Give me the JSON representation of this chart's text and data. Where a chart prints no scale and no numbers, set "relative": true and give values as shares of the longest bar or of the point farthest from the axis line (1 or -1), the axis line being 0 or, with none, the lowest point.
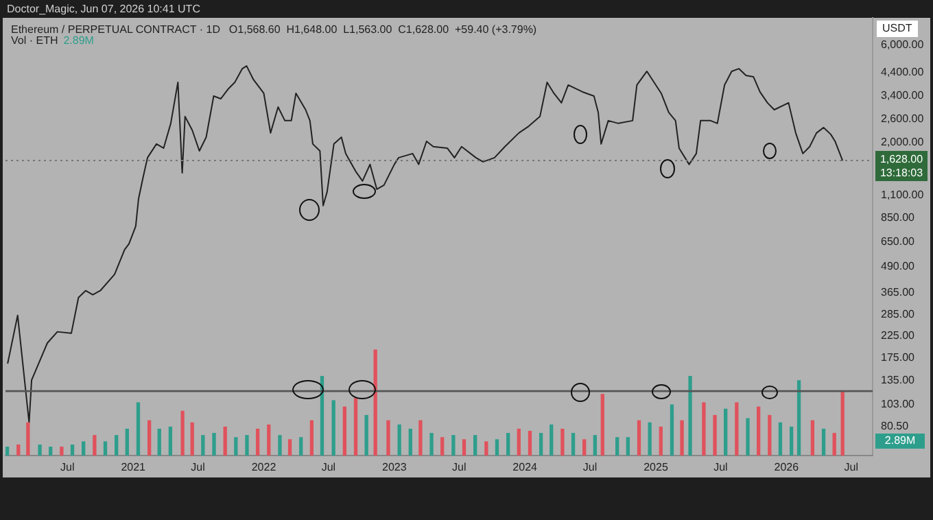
{
  "chart_data": [
    {
      "type": "line",
      "title": "Ethereum / PERPETUAL CONTRACT · 1D",
      "subtitle": "O1,568.60  H1,648.00  L1,563.00  C1,628.00  +59.40 (+3.79%)",
      "annotations": [
        "Doctor_Magic, Jun 07, 2026 10:41 UTC",
        "Vol · ETH",
        "2.89M",
        "USDT",
        "13:18:03",
        "2.89M"
      ],
      "log": "y",
      "tick_labels": "y",
      "xlim": [
        "2020-01-10",
        "2026-08-30"
      ],
      "ylim": [
        58,
        8180
      ],
      "yticks": [
        {
          "value": 6000,
          "label": "6,000.00"
        },
        {
          "value": 4400,
          "label": "4,400.00"
        },
        {
          "value": 3400,
          "label": "3,400.00"
        },
        {
          "value": 2600,
          "label": "2,600.00"
        },
        {
          "value": 2000,
          "label": "2,000.00"
        },
        {
          "value": 1100,
          "label": "1,100.00"
        },
        {
          "value": 850,
          "label": "850.00"
        },
        {
          "value": 650,
          "label": "650.00"
        },
        {
          "value": 490,
          "label": "490.00"
        },
        {
          "value": 365,
          "label": "365.00"
        },
        {
          "value": 285,
          "label": "285.00"
        },
        {
          "value": 225,
          "label": "225.00"
        },
        {
          "value": 175,
          "label": "175.00"
        },
        {
          "value": 135,
          "label": "135.00"
        },
        {
          "value": 103,
          "label": "103.00"
        },
        {
          "value": 80.5,
          "label": "80.50"
        }
      ],
      "ref_lines": [
        {
          "axis": "y",
          "value": 1628,
          "label": "1,628.00",
          "color": "#777777",
          "line_style": "dotted"
        }
      ],
      "series": [
        {
          "color": "#222222",
          "x": [
            "2020-01-16",
            "2020-02-13",
            "2020-03-16",
            "2020-03-23",
            "2020-05-06",
            "2020-06-03",
            "2020-07-12",
            "2020-08-01",
            "2020-08-21",
            "2020-09-10",
            "2020-10-01",
            "2020-11-10",
            "2020-12-08",
            "2020-12-20",
            "2021-01-08",
            "2021-01-16",
            "2021-01-28",
            "2021-02-10",
            "2021-03-07",
            "2021-03-27",
            "2021-04-16",
            "2021-05-06",
            "2021-05-18",
            "2021-05-26",
            "2021-06-15",
            "2021-07-05",
            "2021-07-24",
            "2021-08-14",
            "2021-09-03",
            "2021-09-23",
            "2021-10-12",
            "2021-11-02",
            "2021-11-14",
            "2021-12-03",
            "2022-01-01",
            "2022-01-20",
            "2022-02-10",
            "2022-03-01",
            "2022-03-19",
            "2022-04-01",
            "2022-04-28",
            "2022-05-10",
            "2022-05-18",
            "2022-06-07",
            "2022-06-16",
            "2022-06-27",
            "2022-07-16",
            "2022-08-06",
            "2022-08-18",
            "2022-09-15",
            "2022-10-04",
            "2022-10-25",
            "2022-11-13",
            "2022-12-03",
            "2023-01-01",
            "2023-01-13",
            "2023-02-21",
            "2023-03-10",
            "2023-04-01",
            "2023-04-20",
            "2023-05-29",
            "2023-06-18",
            "2023-07-08",
            "2023-08-17",
            "2023-09-06",
            "2023-10-08",
            "2023-11-06",
            "2023-12-15",
            "2024-01-12",
            "2024-02-12",
            "2024-03-03",
            "2024-03-22",
            "2024-04-12",
            "2024-05-01",
            "2024-06-10",
            "2024-07-12",
            "2024-07-24",
            "2024-08-01",
            "2024-08-21",
            "2024-09-18",
            "2024-10-28",
            "2024-11-09",
            "2024-12-07",
            "2025-01-16",
            "2025-02-06",
            "2025-02-25",
            "2025-03-07",
            "2025-04-04",
            "2025-04-24",
            "2025-05-06",
            "2025-06-03",
            "2025-06-22",
            "2025-07-12",
            "2025-08-01",
            "2025-08-21",
            "2025-09-10",
            "2025-10-01",
            "2025-10-19",
            "2025-11-09",
            "2025-11-28",
            "2026-01-07",
            "2026-01-27",
            "2026-02-16",
            "2026-03-07",
            "2026-03-26",
            "2026-04-15",
            "2026-05-05",
            "2026-05-17",
            "2026-06-07"
          ],
          "values": [
            164,
            283,
            84,
            136,
            207,
            235,
            231,
            346,
            374,
            357,
            374,
            450,
            595,
            634,
            775,
            1058,
            1332,
            1682,
            1965,
            1874,
            2480,
            3945,
            1417,
            2680,
            2296,
            1817,
            2122,
            3379,
            3276,
            3649,
            3945,
            4605,
            4750,
            4071,
            3486,
            2225,
            2985,
            2558,
            2558,
            3486,
            2893,
            2558,
            1965,
            1817,
            978,
            1142,
            1965,
            2122,
            1763,
            1441,
            1293,
            1560,
            1178,
            1234,
            1560,
            1682,
            1763,
            1560,
            2025,
            1906,
            1874,
            1682,
            1906,
            1682,
            1606,
            1682,
            1906,
            2225,
            2405,
            2680,
            3945,
            3486,
            3129,
            3826,
            3541,
            3379,
            2805,
            1965,
            2558,
            2480,
            2558,
            3826,
            4468,
            3486,
            2805,
            2558,
            1874,
            1560,
            1763,
            2558,
            2558,
            2480,
            3826,
            4468,
            4605,
            4264,
            4196,
            3541,
            3129,
            2893,
            3129,
            2225,
            1763,
            1906,
            2225,
            2366,
            2190,
            2025,
            1628
          ]
        }
      ]
    },
    {
      "type": "bar",
      "relative": true,
      "tick_labels": "x",
      "xlim": [
        "2020-01-10",
        "2026-08-30"
      ],
      "xticks": [
        {
          "value": "2020-07-01",
          "label": "Jul"
        },
        {
          "value": "2021-01-01",
          "label": "2021"
        },
        {
          "value": "2021-07-01",
          "label": "Jul"
        },
        {
          "value": "2022-01-01",
          "label": "2022"
        },
        {
          "value": "2022-07-01",
          "label": "Jul"
        },
        {
          "value": "2023-01-01",
          "label": "2023"
        },
        {
          "value": "2023-07-01",
          "label": "Jul"
        },
        {
          "value": "2024-01-01",
          "label": "2024"
        },
        {
          "value": "2024-07-01",
          "label": "Jul"
        },
        {
          "value": "2025-01-01",
          "label": "2025"
        },
        {
          "value": "2025-07-01",
          "label": "Jul"
        },
        {
          "value": "2026-01-01",
          "label": "2026"
        },
        {
          "value": "2026-07-01",
          "label": "Jul"
        }
      ],
      "ref_lines": [
        {
          "axis": "y",
          "value": 0.61,
          "color": "#555555",
          "line_style": "solid"
        }
      ],
      "series": [
        {
          "x": [
            "2020-01-15",
            "2020-02-15",
            "2020-03-13",
            "2020-04-15",
            "2020-05-15",
            "2020-06-15",
            "2020-07-15",
            "2020-08-15",
            "2020-09-15",
            "2020-10-15",
            "2020-11-15",
            "2020-12-15",
            "2021-01-15",
            "2021-02-15",
            "2021-03-15",
            "2021-04-15",
            "2021-05-19",
            "2021-06-15",
            "2021-07-15",
            "2021-08-15",
            "2021-09-15",
            "2021-10-15",
            "2021-11-15",
            "2021-12-15",
            "2022-01-15",
            "2022-02-15",
            "2022-03-15",
            "2022-04-15",
            "2022-05-15",
            "2022-06-13",
            "2022-07-15",
            "2022-08-15",
            "2022-09-15",
            "2022-10-15",
            "2022-11-09",
            "2022-12-15",
            "2023-01-15",
            "2023-02-15",
            "2023-03-15",
            "2023-04-15",
            "2023-05-15",
            "2023-06-15",
            "2023-07-15",
            "2023-08-15",
            "2023-09-15",
            "2023-10-15",
            "2023-11-15",
            "2023-12-15",
            "2024-01-15",
            "2024-02-15",
            "2024-03-15",
            "2024-04-15",
            "2024-05-15",
            "2024-06-15",
            "2024-07-15",
            "2024-08-05",
            "2024-09-15",
            "2024-10-15",
            "2024-11-15",
            "2024-12-15",
            "2025-01-15",
            "2025-02-15",
            "2025-03-15",
            "2025-04-07",
            "2025-05-15",
            "2025-06-15",
            "2025-07-15",
            "2025-08-15",
            "2025-09-15",
            "2025-10-15",
            "2025-11-15",
            "2025-12-15",
            "2026-01-15",
            "2026-02-05",
            "2026-03-15",
            "2026-04-15",
            "2026-05-15",
            "2026-06-07"
          ],
          "values": [
            0.08,
            0.1,
            0.31,
            0.1,
            0.08,
            0.08,
            0.1,
            0.13,
            0.19,
            0.13,
            0.19,
            0.25,
            0.5,
            0.33,
            0.25,
            0.27,
            0.42,
            0.31,
            0.19,
            0.21,
            0.27,
            0.17,
            0.19,
            0.25,
            0.29,
            0.19,
            0.15,
            0.17,
            0.33,
            0.75,
            0.52,
            0.46,
            0.54,
            0.38,
            1,
            0.33,
            0.29,
            0.25,
            0.33,
            0.21,
            0.17,
            0.19,
            0.15,
            0.19,
            0.13,
            0.15,
            0.21,
            0.25,
            0.23,
            0.21,
            0.29,
            0.25,
            0.21,
            0.15,
            0.19,
            0.58,
            0.17,
            0.17,
            0.33,
            0.31,
            0.27,
            0.48,
            0.33,
            0.75,
            0.5,
            0.38,
            0.44,
            0.5,
            0.35,
            0.46,
            0.38,
            0.31,
            0.27,
            0.71,
            0.33,
            0.25,
            0.21,
            0.6
          ],
          "colors": [
            "#2e9e8c",
            "#e0525c",
            "#e0525c",
            "#2e9e8c",
            "#2e9e8c",
            "#e0525c",
            "#2e9e8c",
            "#2e9e8c",
            "#e0525c",
            "#2e9e8c",
            "#2e9e8c",
            "#2e9e8c",
            "#2e9e8c",
            "#e0525c",
            "#2e9e8c",
            "#2e9e8c",
            "#e0525c",
            "#e0525c",
            "#2e9e8c",
            "#2e9e8c",
            "#e0525c",
            "#2e9e8c",
            "#2e9e8c",
            "#e0525c",
            "#e0525c",
            "#2e9e8c",
            "#e0525c",
            "#2e9e8c",
            "#e0525c",
            "#2e9e8c",
            "#2e9e8c",
            "#e0525c",
            "#e0525c",
            "#2e9e8c",
            "#e0525c",
            "#e0525c",
            "#2e9e8c",
            "#2e9e8c",
            "#e0525c",
            "#2e9e8c",
            "#e0525c",
            "#2e9e8c",
            "#e0525c",
            "#2e9e8c",
            "#e0525c",
            "#2e9e8c",
            "#2e9e8c",
            "#e0525c",
            "#e0525c",
            "#2e9e8c",
            "#2e9e8c",
            "#e0525c",
            "#2e9e8c",
            "#e0525c",
            "#2e9e8c",
            "#e0525c",
            "#2e9e8c",
            "#2e9e8c",
            "#e0525c",
            "#2e9e8c",
            "#e0525c",
            "#2e9e8c",
            "#e0525c",
            "#2e9e8c",
            "#e0525c",
            "#e0525c",
            "#2e9e8c",
            "#e0525c",
            "#2e9e8c",
            "#e0525c",
            "#e0525c",
            "#2e9e8c",
            "#2e9e8c",
            "#2e9e8c",
            "#e0525c",
            "#2e9e8c",
            "#e0525c",
            "#e0525c"
          ]
        }
      ]
    }
  ]
}
